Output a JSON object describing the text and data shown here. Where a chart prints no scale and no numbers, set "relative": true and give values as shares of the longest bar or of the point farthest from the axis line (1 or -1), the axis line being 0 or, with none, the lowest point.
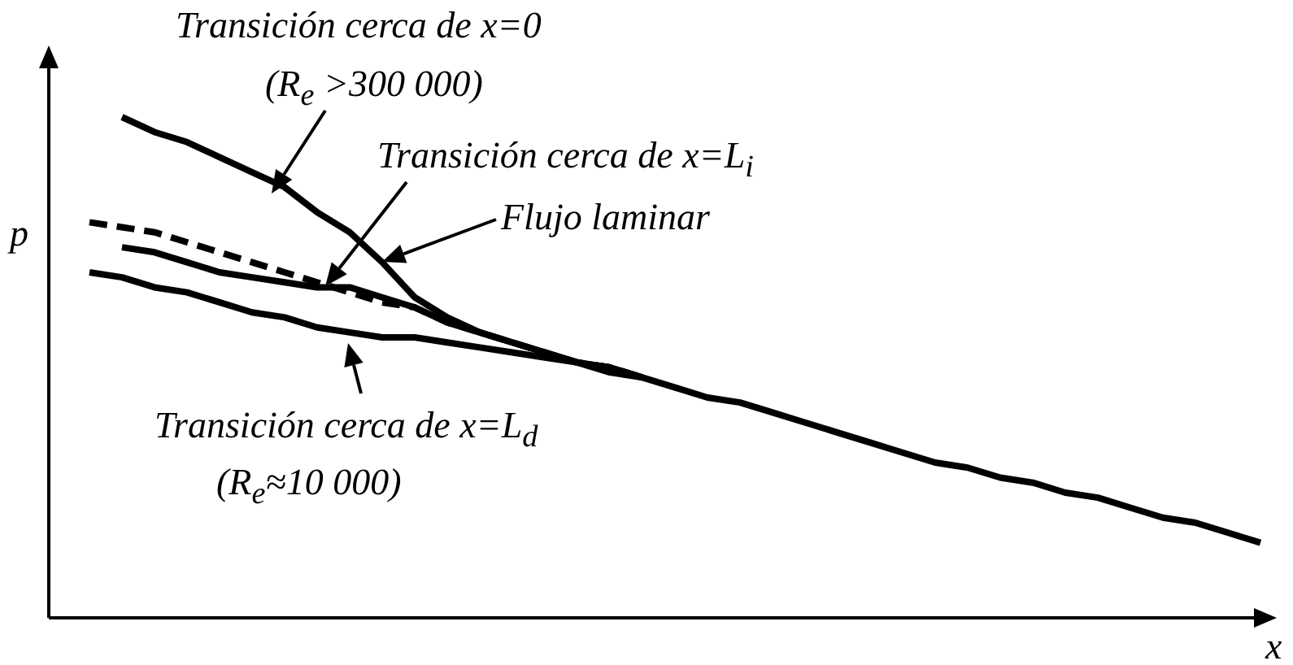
{
  "chart_data": {
    "type": "line",
    "relative": true,
    "xlabel": "x",
    "ylabel": "p",
    "legend": false,
    "marker": "none",
    "categories": [
      null,
      null,
      null,
      null,
      null,
      null,
      null,
      null,
      null,
      null,
      null,
      null,
      null,
      null,
      null,
      null,
      null,
      null,
      null,
      null,
      null,
      null,
      null,
      null,
      null,
      null,
      null,
      null,
      null,
      null,
      null,
      null,
      null,
      null,
      null,
      null,
      null
    ],
    "series": [
      {
        "color": "#000000",
        "line_style": "solid",
        "values": [
          null,
          1.0,
          0.97,
          0.95,
          0.92,
          0.89,
          0.86,
          0.81,
          0.77,
          0.71,
          0.64,
          0.6,
          0.57,
          0.55,
          0.53,
          0.51,
          0.5,
          0.48,
          null,
          null,
          null,
          null,
          null,
          null,
          null,
          null,
          null,
          null,
          null,
          null,
          null,
          null,
          null,
          null,
          null,
          null,
          null
        ]
      },
      {
        "color": "#000000",
        "line_style": "dashed",
        "values": [
          0.79,
          0.78,
          0.77,
          0.75,
          0.73,
          0.71,
          0.69,
          0.67,
          0.65,
          0.63,
          0.62,
          0.59,
          0.57,
          0.55,
          0.53,
          0.51,
          0.5,
          0.48,
          null,
          null,
          null,
          null,
          null,
          null,
          null,
          null,
          null,
          null,
          null,
          null,
          null,
          null,
          null,
          null,
          null,
          null,
          null
        ]
      },
      {
        "color": "#000000",
        "line_style": "solid",
        "values": [
          null,
          0.74,
          0.73,
          0.71,
          0.69,
          0.68,
          0.67,
          0.66,
          0.66,
          0.64,
          0.62,
          0.59,
          0.57,
          0.55,
          0.53,
          0.51,
          0.5,
          0.48,
          null,
          null,
          null,
          null,
          null,
          null,
          null,
          null,
          null,
          null,
          null,
          null,
          null,
          null,
          null,
          null,
          null,
          null,
          null
        ]
      },
      {
        "color": "#000000",
        "line_style": "solid",
        "values": [
          0.69,
          0.68,
          0.66,
          0.65,
          0.63,
          0.61,
          0.6,
          0.58,
          0.57,
          0.56,
          0.56,
          0.55,
          0.54,
          0.53,
          0.52,
          0.51,
          0.49,
          0.48,
          0.46,
          0.44,
          0.43,
          0.41,
          0.39,
          0.37,
          0.35,
          0.33,
          0.31,
          0.3,
          0.28,
          0.27,
          0.25,
          0.24,
          0.22,
          0.2,
          0.19,
          0.17,
          0.15
        ]
      }
    ],
    "annotations": [
      "Transición cerca de x=0",
      "(R$_{e}$ >300 000)",
      "Transición cerca de x=L$_{i}$",
      "Flujo laminar",
      "Transición cerca de x=L$_{d}$",
      "(R$_{e}$≈10 000)"
    ]
  }
}
